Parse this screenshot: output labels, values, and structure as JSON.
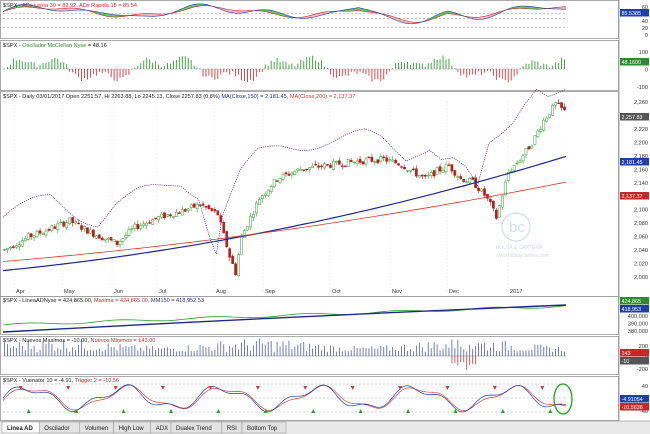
{
  "colors": {
    "up_candle": "#2e9e2e",
    "down_candle": "#b8201a",
    "ma150": "#1a2a8c",
    "ma200": "#d23a2a",
    "ad_line": "#5a1a8a",
    "badge_blue": "#1f3fa8",
    "badge_green": "#2e8b2e",
    "badge_red": "#c62828",
    "badge_gray": "#555555",
    "highlight_circle": "#1aa51a"
  },
  "panels": [
    {
      "id": "adx",
      "label_prefix": "$SPX - ",
      "label_colored": "ADx Lenta 30 = 82.92, ADx Rapida 18 = 85.54",
      "label_color": "#c62828",
      "y_ticks": [
        "60",
        "50",
        "40",
        "20",
        "0"
      ],
      "badge": {
        "text": "85.5385",
        "color": "badge_blue"
      }
    },
    {
      "id": "mcclellan",
      "label_prefix": "$SPX - ",
      "label_colored": "Oscilador McClellan Nyse",
      "label_color": "#2e8b2e",
      "label_suffix": " = 48.16",
      "y_ticks": [
        "100",
        "0",
        "-100"
      ],
      "badge": {
        "text": "48.1600",
        "color": "badge_green"
      }
    },
    {
      "id": "price",
      "label": "$SPX - Daily 03/01/2017 Open 2251.57, Hi 2263.88, Lo 2245.13, Close 2257.83 (0.8%) ",
      "label_ma150": "MA(Close,150) = 2,181.45, ",
      "label_ma200": "MA(Close,200) = 2,137.37",
      "y_ticks": [
        "2,260",
        "2,240",
        "2,220",
        "2,200",
        "2,180",
        "2,160",
        "2,140",
        "2,120",
        "2,100",
        "2,080",
        "2,060",
        "2,040",
        "2,020",
        "2,000"
      ],
      "badges": [
        {
          "text": "2,257.83",
          "color": "badge_gray"
        },
        {
          "text": "2,181.45",
          "color": "badge_blue"
        },
        {
          "text": "2,137.37",
          "color": "badge_red"
        }
      ],
      "x_ticks": [
        "Apr",
        "May",
        "Jun",
        "Jul",
        "Aug",
        "Sep",
        "Oct",
        "Nov",
        "Dec",
        "2017"
      ]
    },
    {
      "id": "ad_line_panel",
      "label_prefix": "$SPX - LineaADNyse = 424,865.00, ",
      "label_mid": "Maxima = 424,865.00, ",
      "label_tail": "MM150 = 418,952.53",
      "y_ticks": [
        "400,000",
        "390,000",
        "380,000"
      ],
      "badges": [
        {
          "text": "424,865",
          "color": "badge_green"
        },
        {
          "text": "418,953",
          "color": "badge_blue"
        }
      ]
    },
    {
      "id": "new_highs_lows",
      "label_prefix": "$SPX - Nuevos Maximos = -10.00, ",
      "label_mid": "Nuevos Minimos = 143.00",
      "y_ticks": [
        "200",
        "0",
        "-200"
      ],
      "badges": [
        {
          "text": "143",
          "color": "badge_red"
        },
        {
          "text": "-10",
          "color": "badge_gray"
        }
      ]
    },
    {
      "id": "vuenator",
      "label_prefix": "$SPX - Vuenator 10 = -4.91, ",
      "label_mid": "Trigger 2 = -10.56",
      "y_ticks": [
        "40",
        "0",
        "-40"
      ],
      "badges": [
        {
          "text": "-4.91054",
          "color": "badge_blue"
        },
        {
          "text": "-10.5636",
          "color": "badge_red"
        }
      ]
    }
  ],
  "watermark": {
    "logo_letters": "bc",
    "name": "BOLSA & CARTERA",
    "url": "www.bolsaycartera.com"
  },
  "tabs": [
    "Linea AD",
    "Oscilador",
    "Volumen",
    "High Low",
    "ADX",
    "Dualex Trend",
    "RSI",
    "Bottom Top"
  ],
  "active_tab": 0
}
